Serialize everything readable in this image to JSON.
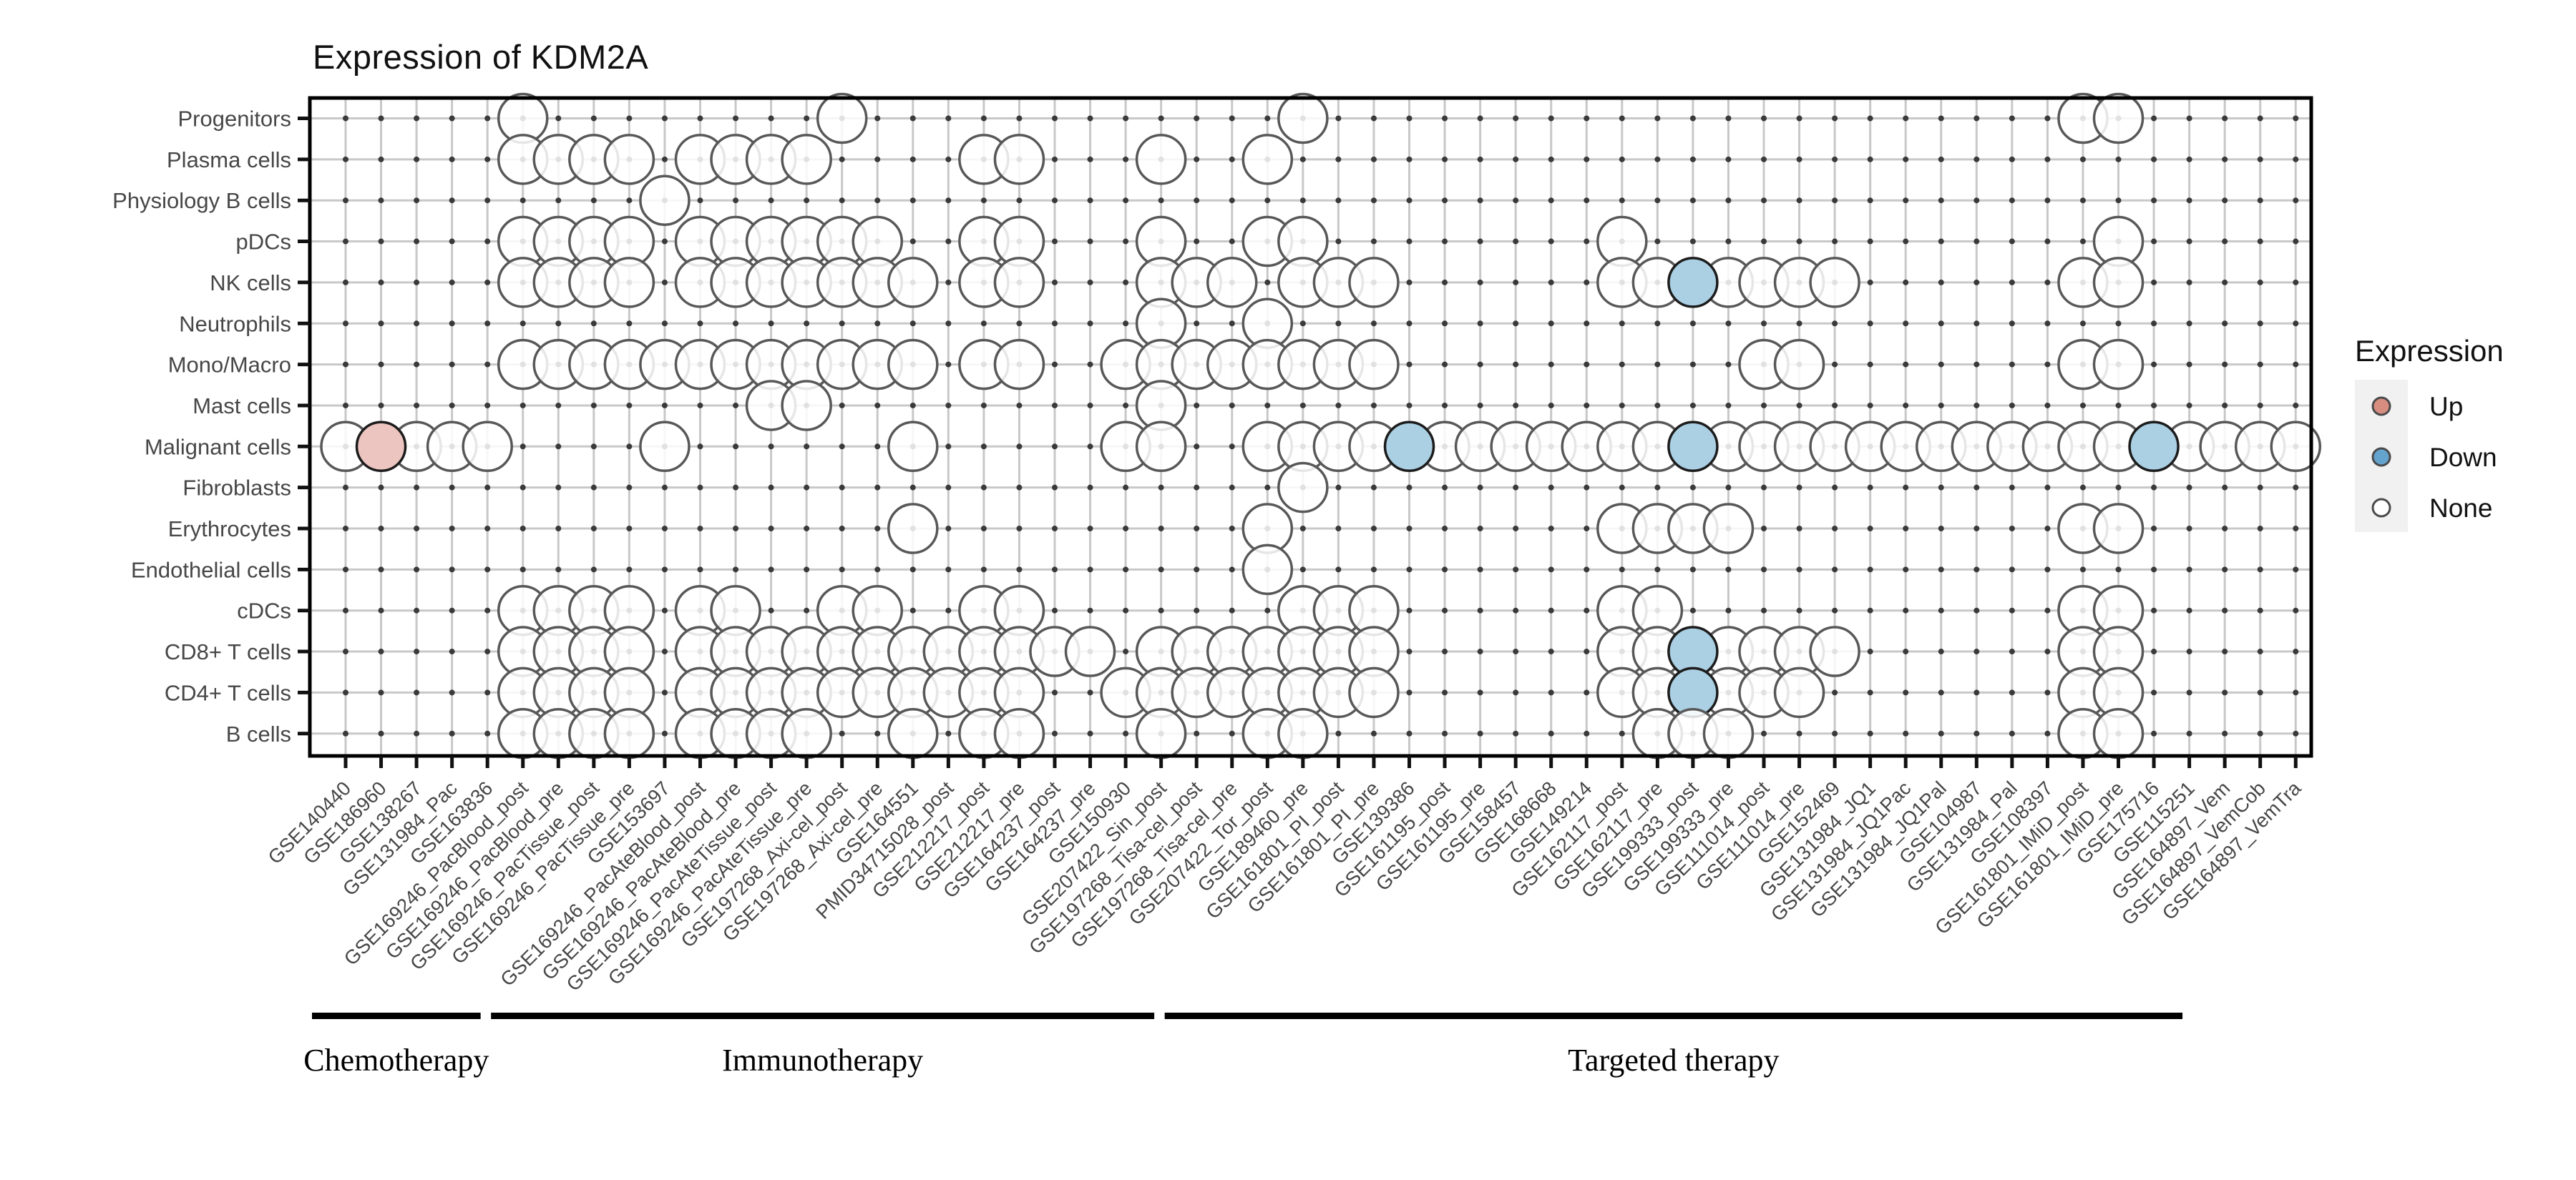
{
  "title": "Expression of KDM2A",
  "legend": {
    "title": "Expression",
    "items": [
      {
        "label": "Up",
        "color": "#D78E81"
      },
      {
        "label": "Down",
        "color": "#65A3CF"
      },
      {
        "label": "None",
        "color": "#FFFFFF"
      }
    ]
  },
  "chart_data": {
    "type": "heatmap",
    "subtype": "dot-matrix",
    "title": "Expression of KDM2A",
    "xlabel": "",
    "ylabel": "",
    "grid": "on",
    "legend_position": "right",
    "dot_statuses": [
      "up",
      "down",
      "none"
    ],
    "status_fill": {
      "up": "#EDC5C0",
      "down": "#ABD0E4",
      "none": "rgba(255,255,255,0.85)"
    },
    "status_stroke": {
      "up": "#1c1c1c",
      "down": "#1c1c1c",
      "none": "#585858"
    },
    "rows": [
      "Progenitors",
      "Plasma cells",
      "Physiology B cells",
      "pDCs",
      "NK cells",
      "Neutrophils",
      "Mono/Macro",
      "Mast cells",
      "Malignant cells",
      "Fibroblasts",
      "Erythrocytes",
      "Endothelial cells",
      "cDCs",
      "CD8+ T cells",
      "CD4+ T cells",
      "B cells"
    ],
    "columns": [
      "GSE140440",
      "GSE186960",
      "GSE138267",
      "GSE131984_Pac",
      "GSE163836",
      "GSE169246_PacBlood_post",
      "GSE169246_PacBlood_pre",
      "GSE169246_PacTissue_post",
      "GSE169246_PacTissue_pre",
      "GSE153697",
      "GSE169246_PacAteBlood_post",
      "GSE169246_PacAteBlood_pre",
      "GSE169246_PacAteTissue_post",
      "GSE169246_PacAteTissue_pre",
      "GSE197268_Axi-cel_post",
      "GSE197268_Axi-cel_pre",
      "GSE164551",
      "PMID34715028_post",
      "GSE212217_post",
      "GSE212217_pre",
      "GSE164237_post",
      "GSE164237_pre",
      "GSE150930",
      "GSE207422_Sin_post",
      "GSE197268_Tisa-cel_post",
      "GSE197268_Tisa-cel_pre",
      "GSE207422_Tor_post",
      "GSE189460_pre",
      "GSE161801_PI_post",
      "GSE161801_PI_pre",
      "GSE139386",
      "GSE161195_post",
      "GSE161195_pre",
      "GSE158457",
      "GSE168668",
      "GSE149214",
      "GSE162117_post",
      "GSE162117_pre",
      "GSE199333_post",
      "GSE199333_pre",
      "GSE111014_post",
      "GSE111014_pre",
      "GSE152469",
      "GSE131984_JQ1",
      "GSE131984_JQ1Pac",
      "GSE131984_JQ1Pal",
      "GSE104987",
      "GSE131984_Pal",
      "GSE108397",
      "GSE161801_IMiD_post",
      "GSE161801_IMiD_pre",
      "GSE175716",
      "GSE115251",
      "GSE164897_Vem",
      "GSE164897_VemCob",
      "GSE164897_VemTra"
    ],
    "groups": [
      {
        "label": "Chemotherapy",
        "start": 1,
        "end": 4
      },
      {
        "label": "Immunotherapy",
        "start": 5,
        "end": 23
      },
      {
        "label": "Targeted therapy",
        "start": 24,
        "end": 52
      }
    ],
    "points": [
      {
        "row": "Progenitors",
        "none": [
          6,
          15,
          28,
          50,
          51
        ],
        "up": [],
        "down": []
      },
      {
        "row": "Plasma cells",
        "none": [
          6,
          7,
          8,
          9,
          11,
          12,
          13,
          14,
          19,
          20,
          24,
          27
        ],
        "up": [],
        "down": []
      },
      {
        "row": "Physiology B cells",
        "none": [
          10
        ],
        "up": [],
        "down": []
      },
      {
        "row": "pDCs",
        "none": [
          6,
          7,
          8,
          9,
          11,
          12,
          13,
          14,
          15,
          16,
          19,
          20,
          24,
          27,
          28,
          37,
          51
        ],
        "up": [],
        "down": []
      },
      {
        "row": "NK cells",
        "none": [
          6,
          7,
          8,
          9,
          11,
          12,
          13,
          14,
          15,
          16,
          17,
          19,
          20,
          24,
          25,
          26,
          28,
          29,
          30,
          37,
          38,
          40,
          41,
          42,
          43,
          50,
          51
        ],
        "up": [],
        "down": [
          39
        ]
      },
      {
        "row": "Neutrophils",
        "none": [
          24,
          27
        ],
        "up": [],
        "down": []
      },
      {
        "row": "Mono/Macro",
        "none": [
          6,
          7,
          8,
          9,
          10,
          11,
          12,
          13,
          14,
          15,
          16,
          17,
          19,
          20,
          23,
          24,
          25,
          26,
          27,
          28,
          29,
          30,
          41,
          42,
          50,
          51
        ],
        "up": [],
        "down": []
      },
      {
        "row": "Mast cells",
        "none": [
          13,
          14,
          24
        ],
        "up": [],
        "down": []
      },
      {
        "row": "Malignant cells",
        "none": [
          1,
          3,
          4,
          5,
          10,
          17,
          23,
          24,
          27,
          28,
          29,
          30,
          32,
          33,
          34,
          35,
          36,
          37,
          38,
          40,
          41,
          42,
          43,
          44,
          45,
          46,
          47,
          48,
          49,
          50,
          51,
          53,
          54,
          55,
          56
        ],
        "up": [
          2
        ],
        "down": [
          31,
          39,
          52
        ]
      },
      {
        "row": "Fibroblasts",
        "none": [
          28
        ],
        "up": [],
        "down": []
      },
      {
        "row": "Erythrocytes",
        "none": [
          17,
          27,
          37,
          38,
          39,
          40,
          50,
          51
        ],
        "up": [],
        "down": []
      },
      {
        "row": "Endothelial cells",
        "none": [
          27
        ],
        "up": [],
        "down": []
      },
      {
        "row": "cDCs",
        "none": [
          6,
          7,
          8,
          9,
          11,
          12,
          15,
          16,
          19,
          20,
          28,
          29,
          30,
          37,
          38,
          50,
          51
        ],
        "up": [],
        "down": []
      },
      {
        "row": "CD8+ T cells",
        "none": [
          6,
          7,
          8,
          9,
          11,
          12,
          13,
          14,
          15,
          16,
          17,
          18,
          19,
          20,
          21,
          22,
          24,
          25,
          26,
          27,
          28,
          29,
          30,
          37,
          38,
          40,
          41,
          42,
          43,
          50,
          51
        ],
        "up": [],
        "down": [
          39
        ]
      },
      {
        "row": "CD4+ T cells",
        "none": [
          6,
          7,
          8,
          9,
          11,
          12,
          13,
          14,
          15,
          16,
          17,
          18,
          19,
          20,
          23,
          24,
          25,
          26,
          27,
          28,
          29,
          30,
          37,
          38,
          40,
          41,
          42,
          50,
          51
        ],
        "up": [],
        "down": [
          39
        ]
      },
      {
        "row": "B cells",
        "none": [
          6,
          7,
          8,
          9,
          11,
          12,
          13,
          14,
          17,
          19,
          20,
          24,
          27,
          28,
          38,
          39,
          40,
          50,
          51
        ],
        "up": [],
        "down": []
      }
    ]
  }
}
